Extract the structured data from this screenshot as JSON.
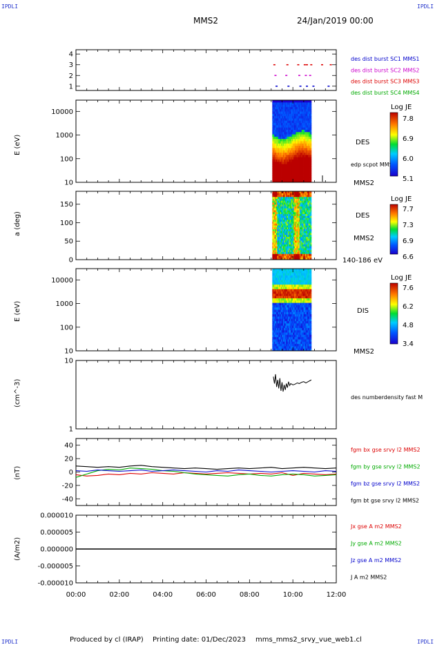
{
  "header": {
    "corner_tl": "IPDLI",
    "corner_tr": "IPDLI",
    "corner_bl": "IPDLI",
    "corner_br": "IPDLI",
    "spacecraft": "MMS2",
    "date": "24/Jan/2019 00:00"
  },
  "footer": {
    "produced": "Produced by cl (IRAP)",
    "printing": "Printing date: 01/Dec/2023",
    "filename": "mms_mms2_srvy_vue_web1.cl"
  },
  "colors": {
    "red": "#dd0000",
    "green": "#00aa00",
    "blue": "#0000cc",
    "magenta": "#cc00cc",
    "black": "#000000"
  },
  "chart_data": [
    {
      "id": "burst",
      "type": "scatter",
      "y_ticks": [
        "1",
        "2",
        "3",
        "4"
      ],
      "ylim": [
        0.6,
        4.4
      ],
      "legend": [
        {
          "label": "des dist burst SC1 MMS1",
          "color": "#0000cc"
        },
        {
          "label": "des dist burst SC2 MMS2",
          "color": "#cc00cc"
        },
        {
          "label": "des dist burst SC3 MMS3",
          "color": "#dd0000"
        },
        {
          "label": "des dist burst SC4 MMS4",
          "color": "#00aa00"
        }
      ],
      "series": [
        {
          "y": 3,
          "color": "#dd0000",
          "x": [
            9.1,
            9.7,
            10.2,
            10.5,
            10.6,
            10.8,
            11.3,
            11.7
          ]
        },
        {
          "y": 2,
          "color": "#cc00cc",
          "x": [
            9.15,
            9.65,
            10.25,
            10.55,
            10.75
          ]
        },
        {
          "y": 1,
          "color": "#0000cc",
          "x": [
            9.2,
            9.75,
            10.3,
            10.6,
            10.9,
            11.6
          ]
        }
      ]
    },
    {
      "id": "des-energy",
      "type": "heatmap",
      "ylabel": "E (eV)",
      "y_ticks": [
        "10",
        "100",
        "1000",
        "10000"
      ],
      "ylim_log": [
        10,
        30000
      ],
      "colorbar": {
        "title": "Log JE",
        "ticks": [
          "7.8",
          "6.9",
          "6.0",
          "5.1"
        ]
      },
      "right_labels": [
        "DES",
        "edp scpot MMS2",
        "MMS2"
      ],
      "x_range": [
        9.05,
        10.85
      ]
    },
    {
      "id": "des-pitch",
      "type": "heatmap",
      "ylabel": "a (deg)",
      "y_ticks": [
        "0",
        "50",
        "100",
        "150"
      ],
      "ylim": [
        0,
        185
      ],
      "colorbar": {
        "title": "Log JE",
        "ticks": [
          "7.7",
          "7.3",
          "6.9",
          "6.6"
        ]
      },
      "right_labels": [
        "DES",
        "MMS2",
        "140-186 eV"
      ],
      "x_range": [
        9.05,
        10.85
      ]
    },
    {
      "id": "dis-energy",
      "type": "heatmap",
      "ylabel": "E (eV)",
      "y_ticks": [
        "10",
        "100",
        "1000",
        "10000"
      ],
      "ylim_log": [
        10,
        30000
      ],
      "colorbar": {
        "title": "Log JE",
        "ticks": [
          "7.6",
          "6.2",
          "4.8",
          "3.4"
        ]
      },
      "right_labels": [
        "DIS",
        "MMS2"
      ],
      "x_range": [
        9.05,
        10.85
      ]
    },
    {
      "id": "density",
      "type": "line",
      "ylabel": "(cm^-3)",
      "y_ticks": [
        "1",
        "10"
      ],
      "ylim_log": [
        1,
        10
      ],
      "legend": [
        {
          "label": "des numberdensity fast M",
          "color": "#000000"
        }
      ],
      "series": [
        {
          "name": "des numberdensity fast M",
          "color": "#000000",
          "x": [
            9.1,
            9.15,
            9.2,
            9.25,
            9.3,
            9.35,
            9.4,
            9.45,
            9.5,
            9.55,
            9.6,
            9.65,
            9.7,
            9.75,
            9.8,
            9.85,
            9.9,
            10.0,
            10.1,
            10.2,
            10.3,
            10.4,
            10.5,
            10.6,
            10.7,
            10.8,
            10.85
          ],
          "y": [
            5.8,
            4.6,
            6.3,
            4.1,
            5.2,
            3.9,
            5.5,
            3.6,
            4.8,
            3.5,
            4.4,
            3.7,
            4.6,
            4.0,
            4.9,
            4.3,
            4.6,
            4.4,
            4.5,
            4.7,
            4.6,
            4.8,
            4.9,
            4.7,
            4.9,
            5.1,
            5.2
          ]
        }
      ]
    },
    {
      "id": "bfield",
      "type": "line",
      "ylabel": "(nT)",
      "y_ticks": [
        "-40",
        "-20",
        "0",
        "20",
        "40"
      ],
      "ylim": [
        -50,
        50
      ],
      "legend": [
        {
          "label": "fgm bx gse srvy l2 MMS2",
          "color": "#dd0000"
        },
        {
          "label": "fgm by gse srvy l2 MMS2",
          "color": "#00aa00"
        },
        {
          "label": "fgm bz gse srvy l2 MMS2",
          "color": "#0000cc"
        },
        {
          "label": "fgm bt gse srvy l2 MMS2",
          "color": "#000000"
        }
      ],
      "series": [
        {
          "name": "fgm bx gse srvy l2 MMS2",
          "color": "#dd0000",
          "x": [
            0,
            0.5,
            1,
            1.5,
            2,
            2.5,
            3,
            3.5,
            4,
            4.5,
            5,
            5.5,
            6,
            6.5,
            7,
            7.5,
            8,
            8.5,
            9,
            9.5,
            10,
            10.5,
            11,
            11.5,
            12
          ],
          "y": [
            -4,
            -6,
            -5,
            -3,
            -4,
            -2,
            -3,
            -1,
            -2,
            -3,
            -1,
            -2,
            -3,
            -2,
            -1,
            -2,
            -3,
            -2,
            -3,
            -1,
            -5,
            -2,
            -3,
            -4,
            -3
          ]
        },
        {
          "name": "fgm by gse srvy l2 MMS2",
          "color": "#00aa00",
          "x": [
            0,
            0.5,
            1,
            1.5,
            2,
            2.5,
            3,
            3.5,
            4,
            4.5,
            5,
            5.5,
            6,
            6.5,
            7,
            7.5,
            8,
            8.5,
            9,
            9.5,
            10,
            10.5,
            11,
            11.5,
            12
          ],
          "y": [
            -8,
            -3,
            2,
            4,
            3,
            6,
            5,
            4,
            2,
            1,
            -1,
            -3,
            -4,
            -5,
            -6,
            -4,
            -3,
            -5,
            -6,
            -4,
            -3,
            -4,
            -6,
            -5,
            -4
          ]
        },
        {
          "name": "fgm bz gse srvy l2 MMS2",
          "color": "#0000cc",
          "x": [
            0,
            0.5,
            1,
            1.5,
            2,
            2.5,
            3,
            3.5,
            4,
            4.5,
            5,
            5.5,
            6,
            6.5,
            7,
            7.5,
            8,
            8.5,
            9,
            9.5,
            10,
            10.5,
            11,
            11.5,
            12
          ],
          "y": [
            2,
            1,
            3,
            2,
            1,
            2,
            3,
            1,
            2,
            3,
            2,
            1,
            0,
            2,
            1,
            3,
            2,
            1,
            0,
            1,
            2,
            1,
            0,
            2,
            1
          ]
        },
        {
          "name": "fgm bt gse srvy l2 MMS2",
          "color": "#000000",
          "x": [
            0,
            0.5,
            1,
            1.5,
            2,
            2.5,
            3,
            3.5,
            4,
            4.5,
            5,
            5.5,
            6,
            6.5,
            7,
            7.5,
            8,
            8.5,
            9,
            9.5,
            10,
            10.5,
            11,
            11.5,
            12
          ],
          "y": [
            9,
            8,
            7,
            8,
            7,
            9,
            10,
            8,
            7,
            6,
            5,
            6,
            5,
            4,
            5,
            6,
            5,
            6,
            7,
            5,
            6,
            7,
            6,
            5,
            6
          ]
        }
      ]
    },
    {
      "id": "current",
      "type": "line",
      "ylabel": "(A/m2)",
      "y_ticks": [
        "-0.000010",
        "-0.000005",
        "0.000000",
        "0.000005",
        "0.000010"
      ],
      "ylim": [
        -1e-05,
        1e-05
      ],
      "legend": [
        {
          "label": "Jx gse A m2 MMS2",
          "color": "#dd0000"
        },
        {
          "label": "Jy gse A m2 MMS2",
          "color": "#00aa00"
        },
        {
          "label": "Jz gse A m2 MMS2",
          "color": "#0000cc"
        },
        {
          "label": "J A m2 MMS2",
          "color": "#000000"
        }
      ],
      "series": [
        {
          "name": "J A m2 MMS2",
          "color": "#000000",
          "x": [
            0,
            12
          ],
          "y": [
            0,
            0
          ]
        }
      ]
    }
  ],
  "time_axis": {
    "ticks": [
      "00:00",
      "02:00",
      "04:00",
      "06:00",
      "08:00",
      "10:00",
      "12:00"
    ],
    "xlim": [
      0,
      12
    ]
  }
}
